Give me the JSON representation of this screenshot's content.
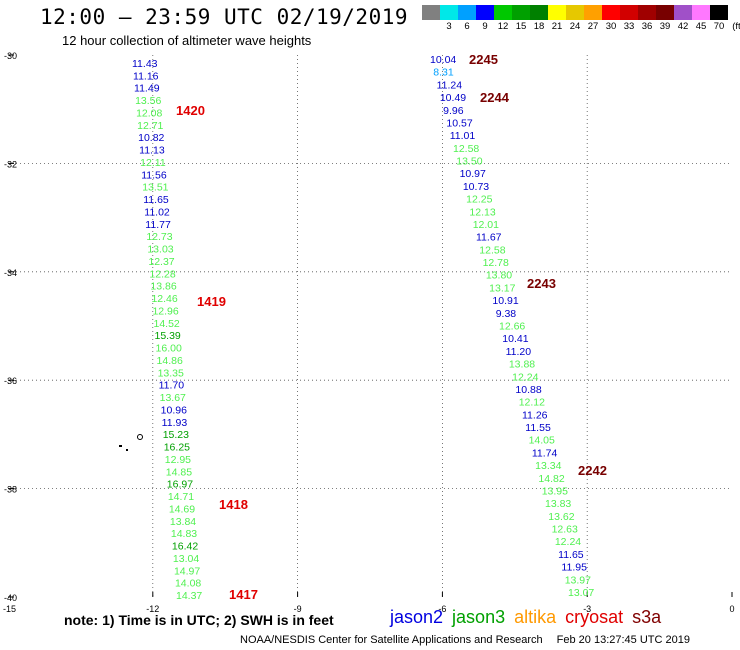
{
  "header": {
    "title": "12:00 – 23:59 UTC 02/19/2019",
    "subtitle": "12 hour collection of altimeter wave heights"
  },
  "scale": {
    "unit": "(ft)",
    "bins": [
      {
        "label": "",
        "color": "#808080"
      },
      {
        "label": "3",
        "color": "#00e8e8"
      },
      {
        "label": "6",
        "color": "#00a0ff"
      },
      {
        "label": "9",
        "color": "#0000ff"
      },
      {
        "label": "12",
        "color": "#00c800"
      },
      {
        "label": "15",
        "color": "#00a000"
      },
      {
        "label": "18",
        "color": "#008000"
      },
      {
        "label": "21",
        "color": "#ffff00"
      },
      {
        "label": "24",
        "color": "#e6c800"
      },
      {
        "label": "27",
        "color": "#ffa000"
      },
      {
        "label": "30",
        "color": "#ff0000"
      },
      {
        "label": "33",
        "color": "#d20000"
      },
      {
        "label": "36",
        "color": "#a00000"
      },
      {
        "label": "39",
        "color": "#780000"
      },
      {
        "label": "42",
        "color": "#a050c8"
      },
      {
        "label": "45",
        "color": "#ff78ff"
      },
      {
        "label": "70",
        "color": "#000000"
      }
    ]
  },
  "axes": {
    "x_ticks": [
      "-12",
      "-9",
      "-6",
      "-3",
      "0"
    ],
    "y_ticks": [
      "-30",
      "-32",
      "-34",
      "-36",
      "-38",
      "-40"
    ],
    "corner_label": "-15",
    "lon_range": [
      -15,
      0
    ],
    "lat_range": [
      -40,
      -30
    ]
  },
  "tracks": [
    {
      "satellite": "jason3",
      "labels": [
        {
          "t": "11.43",
          "c": "#0000c8"
        },
        {
          "t": "11.16",
          "c": "#0000c8"
        },
        {
          "t": "11.49",
          "c": "#0000c8"
        },
        {
          "t": "13.56",
          "c": "#50f050"
        },
        {
          "t": "12.08",
          "c": "#50f050"
        },
        {
          "t": "12.71",
          "c": "#50f050"
        },
        {
          "t": "10.82",
          "c": "#0000c8"
        },
        {
          "t": "11.13",
          "c": "#0000c8"
        },
        {
          "t": "12.11",
          "c": "#50f050"
        },
        {
          "t": "11.56",
          "c": "#0000c8"
        },
        {
          "t": "13.51",
          "c": "#50f050"
        },
        {
          "t": "11.65",
          "c": "#0000c8"
        },
        {
          "t": "11.02",
          "c": "#0000c8"
        },
        {
          "t": "11.77",
          "c": "#0000c8"
        },
        {
          "t": "12.73",
          "c": "#50f050"
        },
        {
          "t": "13.03",
          "c": "#50f050"
        },
        {
          "t": "12.37",
          "c": "#50f050"
        },
        {
          "t": "12.28",
          "c": "#50f050"
        },
        {
          "t": "13.86",
          "c": "#50f050"
        },
        {
          "t": "12.46",
          "c": "#50f050"
        },
        {
          "t": "12.96",
          "c": "#50f050"
        },
        {
          "t": "14.52",
          "c": "#50f050"
        },
        {
          "t": "15.39",
          "c": "#00a000"
        },
        {
          "t": "16.00",
          "c": "#50f050"
        },
        {
          "t": "14.86",
          "c": "#50f050"
        },
        {
          "t": "13.35",
          "c": "#50f050"
        },
        {
          "t": "11.70",
          "c": "#0000c8"
        },
        {
          "t": "13.67",
          "c": "#50f050"
        },
        {
          "t": "10.96",
          "c": "#0000c8"
        },
        {
          "t": "11.93",
          "c": "#0000c8"
        },
        {
          "t": "15.23",
          "c": "#00a000"
        },
        {
          "t": "16.25",
          "c": "#00a000"
        },
        {
          "t": "12.95",
          "c": "#50f050"
        },
        {
          "t": "14.85",
          "c": "#50f050"
        },
        {
          "t": "16.97",
          "c": "#00a000"
        },
        {
          "t": "14.71",
          "c": "#50f050"
        },
        {
          "t": "14.69",
          "c": "#50f050"
        },
        {
          "t": "13.84",
          "c": "#50f050"
        },
        {
          "t": "14.83",
          "c": "#50f050"
        },
        {
          "t": "16.42",
          "c": "#00a000"
        },
        {
          "t": "13.04",
          "c": "#50f050"
        },
        {
          "t": "14.97",
          "c": "#50f050"
        },
        {
          "t": "14.08",
          "c": "#50f050"
        },
        {
          "t": "14.37",
          "c": "#50f050"
        }
      ]
    },
    {
      "satellite": "jason3",
      "labels": [
        {
          "t": "10.04",
          "c": "#0000c8"
        },
        {
          "t": "8.31",
          "c": "#00a0ff"
        },
        {
          "t": "11.24",
          "c": "#0000c8"
        },
        {
          "t": "10.49",
          "c": "#0000c8"
        },
        {
          "t": "9.96",
          "c": "#0000c8"
        },
        {
          "t": "10.57",
          "c": "#0000c8"
        },
        {
          "t": "11.01",
          "c": "#0000c8"
        },
        {
          "t": "12.58",
          "c": "#50f050"
        },
        {
          "t": "13.50",
          "c": "#50f050"
        },
        {
          "t": "10.97",
          "c": "#0000c8"
        },
        {
          "t": "10.73",
          "c": "#0000c8"
        },
        {
          "t": "12.25",
          "c": "#50f050"
        },
        {
          "t": "12.13",
          "c": "#50f050"
        },
        {
          "t": "12.01",
          "c": "#50f050"
        },
        {
          "t": "11.67",
          "c": "#0000c8"
        },
        {
          "t": "12.58",
          "c": "#50f050"
        },
        {
          "t": "12.78",
          "c": "#50f050"
        },
        {
          "t": "13.80",
          "c": "#50f050"
        },
        {
          "t": "13.17",
          "c": "#50f050"
        },
        {
          "t": "10.91",
          "c": "#0000c8"
        },
        {
          "t": "9.38",
          "c": "#0000c8"
        },
        {
          "t": "12.66",
          "c": "#50f050"
        },
        {
          "t": "10.41",
          "c": "#0000c8"
        },
        {
          "t": "11.20",
          "c": "#0000c8"
        },
        {
          "t": "13.88",
          "c": "#50f050"
        },
        {
          "t": "12.24",
          "c": "#50f050"
        },
        {
          "t": "10.88",
          "c": "#0000c8"
        },
        {
          "t": "12.12",
          "c": "#50f050"
        },
        {
          "t": "11.26",
          "c": "#0000c8"
        },
        {
          "t": "11.55",
          "c": "#0000c8"
        },
        {
          "t": "14.05",
          "c": "#50f050"
        },
        {
          "t": "11.74",
          "c": "#0000c8"
        },
        {
          "t": "13.34",
          "c": "#50f050"
        },
        {
          "t": "14.82",
          "c": "#50f050"
        },
        {
          "t": "13.95",
          "c": "#50f050"
        },
        {
          "t": "13.83",
          "c": "#50f050"
        },
        {
          "t": "13.62",
          "c": "#50f050"
        },
        {
          "t": "12.63",
          "c": "#50f050"
        },
        {
          "t": "12.24",
          "c": "#50f050"
        },
        {
          "t": "11.65",
          "c": "#0000c8"
        },
        {
          "t": "11.95",
          "c": "#0000c8"
        },
        {
          "t": "13.97",
          "c": "#50f050"
        },
        {
          "t": "13.07",
          "c": "#50f050"
        }
      ]
    }
  ],
  "time_labels": [
    {
      "t": "1420",
      "c": "#e00000"
    },
    {
      "t": "1419",
      "c": "#e00000"
    },
    {
      "t": "1418",
      "c": "#e00000"
    },
    {
      "t": "1417",
      "c": "#e00000"
    },
    {
      "t": "2245",
      "c": "#780000"
    },
    {
      "t": "2244",
      "c": "#780000"
    },
    {
      "t": "2243",
      "c": "#780000"
    },
    {
      "t": "2242",
      "c": "#780000"
    }
  ],
  "note": "note:  1) Time is in UTC;  2) SWH is in feet",
  "satellites": [
    {
      "name": "jason2",
      "color": "#0000e0"
    },
    {
      "name": "jason3",
      "color": "#00a000"
    },
    {
      "name": "altika",
      "color": "#ff9900"
    },
    {
      "name": "cryosat",
      "color": "#e00000"
    },
    {
      "name": "s3a",
      "color": "#800000"
    }
  ],
  "credit": "NOAA/NESDIS Center for Satellite Applications and Research",
  "timestamp": "Feb 20 13:27:45 UTC 2019"
}
